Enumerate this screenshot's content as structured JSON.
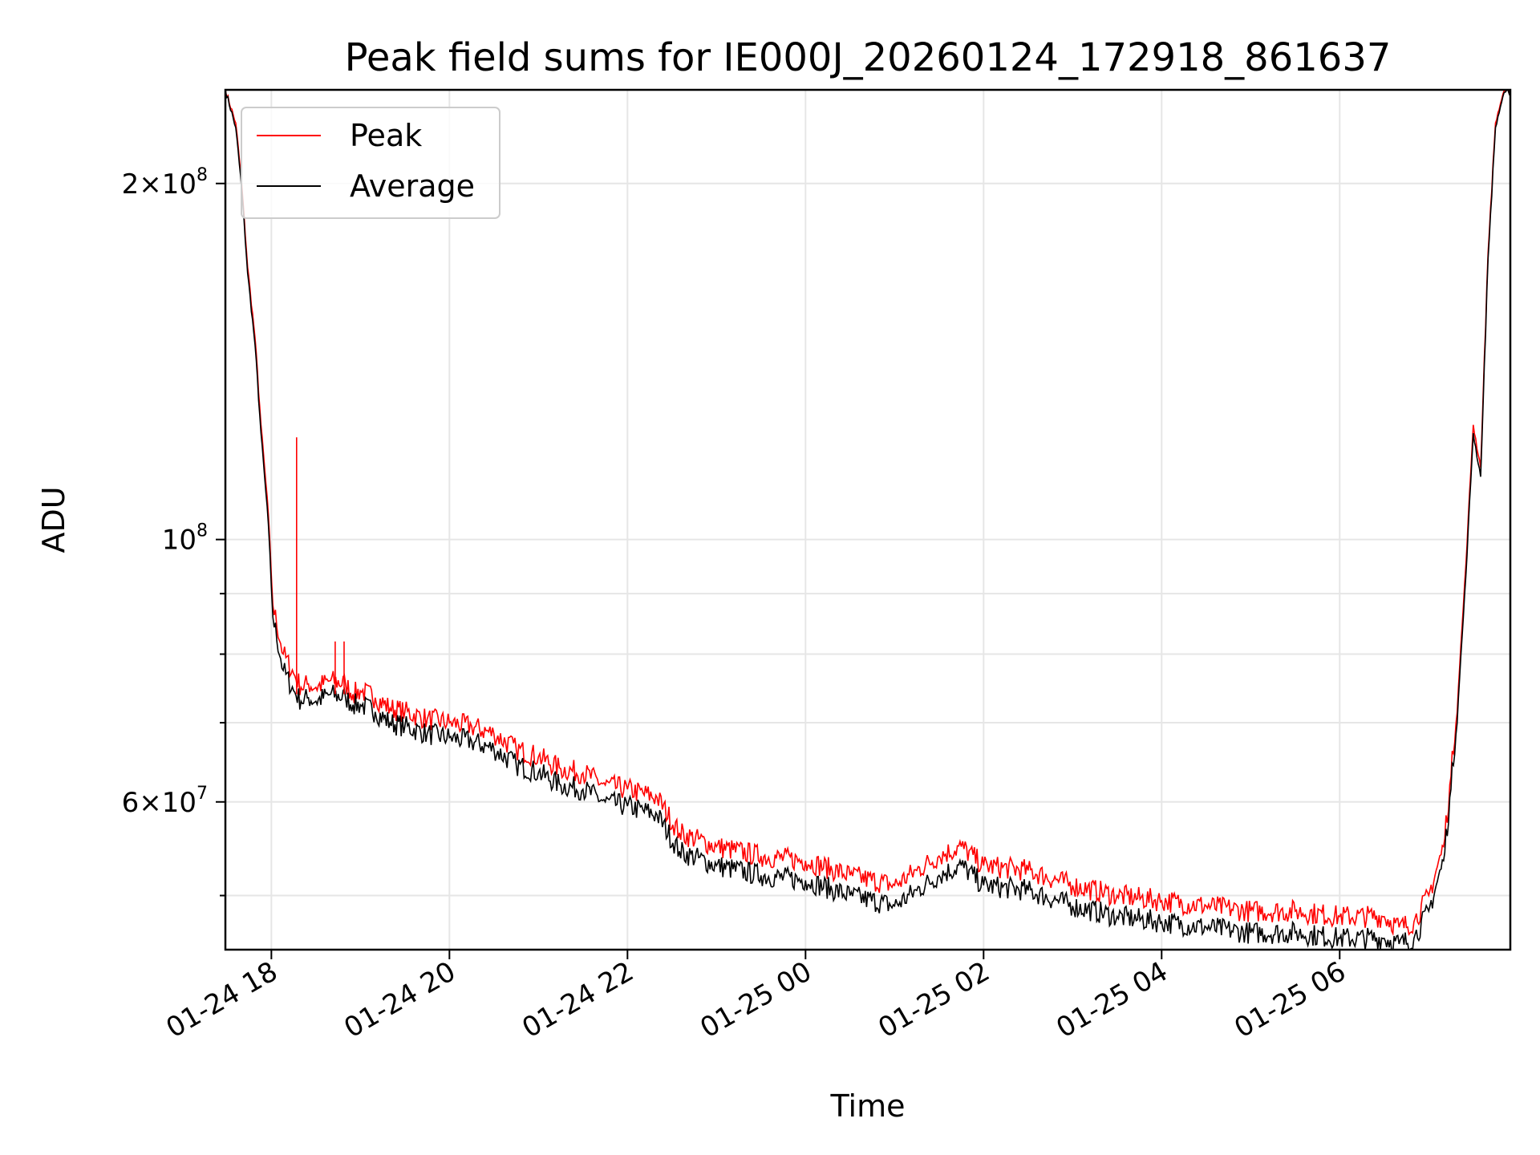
{
  "chart_data": {
    "type": "line",
    "title": "Peak field sums for IE000J_20260124_172918_861637",
    "xlabel": "Time",
    "ylabel": "ADU",
    "yscale": "log",
    "ylim": [
      45000000,
      240000000
    ],
    "xlim": [
      "2026-01-24 17:29",
      "2026-01-25 07:55"
    ],
    "grid": true,
    "legend_position": "upper-left",
    "x_tick_labels": [
      "01-24 18",
      "01-24 20",
      "01-24 22",
      "01-25 00",
      "01-25 02",
      "01-25 04",
      "01-25 06"
    ],
    "x_ticks": [
      "2026-01-24 18:00",
      "2026-01-24 20:00",
      "2026-01-24 22:00",
      "2026-01-25 00:00",
      "2026-01-25 02:00",
      "2026-01-25 04:00",
      "2026-01-25 06:00"
    ],
    "y_major_ticks": [
      {
        "value": 60000000,
        "mantissa": "6",
        "exponent": "7"
      },
      {
        "value": 100000000,
        "mantissa": "",
        "exponent": "8"
      },
      {
        "value": 200000000,
        "mantissa": "2",
        "exponent": "8"
      }
    ],
    "y_minor_ticks": [
      50000000,
      70000000,
      80000000,
      90000000
    ],
    "x": [
      "2026-01-24 17:29",
      "2026-01-24 17:36",
      "2026-01-24 17:40",
      "2026-01-24 17:44",
      "2026-01-24 17:49",
      "2026-01-24 17:53",
      "2026-01-24 17:58",
      "2026-01-24 18:01",
      "2026-01-24 18:08",
      "2026-01-24 18:15",
      "2026-01-24 18:20",
      "2026-01-24 18:25",
      "2026-01-24 18:30",
      "2026-01-24 18:40",
      "2026-01-24 18:50",
      "2026-01-24 18:55",
      "2026-01-24 19:00",
      "2026-01-24 19:10",
      "2026-01-24 19:20",
      "2026-01-24 19:30",
      "2026-01-24 19:45",
      "2026-01-24 20:00",
      "2026-01-24 20:15",
      "2026-01-24 20:30",
      "2026-01-24 20:45",
      "2026-01-24 21:00",
      "2026-01-24 21:15",
      "2026-01-24 21:30",
      "2026-01-24 21:45",
      "2026-01-24 22:00",
      "2026-01-24 22:20",
      "2026-01-24 22:35",
      "2026-01-24 23:00",
      "2026-01-24 23:30",
      "2026-01-25 00:00",
      "2026-01-25 00:30",
      "2026-01-25 01:00",
      "2026-01-25 01:15",
      "2026-01-25 01:30",
      "2026-01-25 01:45",
      "2026-01-25 02:00",
      "2026-01-25 02:30",
      "2026-01-25 03:00",
      "2026-01-25 03:30",
      "2026-01-25 04:00",
      "2026-01-25 04:30",
      "2026-01-25 05:00",
      "2026-01-25 05:30",
      "2026-01-25 06:00",
      "2026-01-25 06:30",
      "2026-01-25 06:40",
      "2026-01-25 06:50",
      "2026-01-25 07:00",
      "2026-01-25 07:10",
      "2026-01-25 07:15",
      "2026-01-25 07:20",
      "2026-01-25 07:25",
      "2026-01-25 07:30",
      "2026-01-25 07:35",
      "2026-01-25 07:40",
      "2026-01-25 07:45",
      "2026-01-25 07:50",
      "2026-01-25 07:55"
    ],
    "series": [
      {
        "name": "Peak",
        "color": "#ff0000",
        "values": [
          240000000,
          225000000,
          200000000,
          170000000,
          148000000,
          125000000,
          105000000,
          88000000,
          80000000,
          77000000,
          75000000,
          75500000,
          75000000,
          76000000,
          75500000,
          74000000,
          74500000,
          73500000,
          72000000,
          71500000,
          70500000,
          70000000,
          69500000,
          68500000,
          66500000,
          65500000,
          64000000,
          63500000,
          62000000,
          61500000,
          60500000,
          56500000,
          55000000,
          54000000,
          53500000,
          52000000,
          51000000,
          52500000,
          54000000,
          55000000,
          53000000,
          52500000,
          51000000,
          50000000,
          49500000,
          49000000,
          48500000,
          48500000,
          48000000,
          48000000,
          47000000,
          47500000,
          50000000,
          55000000,
          63000000,
          75000000,
          95000000,
          125000000,
          115000000,
          175000000,
          225000000,
          238000000,
          240000000
        ]
      },
      {
        "name": "Average",
        "color": "#000000",
        "values": [
          240000000,
          223000000,
          198000000,
          168000000,
          146000000,
          123000000,
          103000000,
          86000000,
          77500000,
          74500000,
          73000000,
          73500000,
          73000000,
          74000000,
          73500000,
          72500000,
          72500000,
          71500000,
          70000000,
          69500000,
          68500000,
          68000000,
          67500000,
          66500000,
          64500000,
          63500000,
          62000000,
          61500000,
          60000000,
          59500000,
          58500000,
          54500000,
          53000000,
          52000000,
          51500000,
          50000000,
          49000000,
          50500000,
          52000000,
          53000000,
          51000000,
          50500000,
          49000000,
          48000000,
          47500000,
          47000000,
          46500000,
          46500000,
          46000000,
          46000000,
          45500000,
          46000000,
          48500000,
          53500000,
          61500000,
          73500000,
          93000000,
          123000000,
          113000000,
          173000000,
          223000000,
          237000000,
          240000000
        ]
      }
    ],
    "annotations": [
      {
        "series": "Peak",
        "x": "2026-01-24 18:17",
        "y": 122000000,
        "type": "spike"
      },
      {
        "series": "Peak",
        "x": "2026-01-24 18:43",
        "y": 82000000,
        "type": "spike"
      },
      {
        "series": "Peak",
        "x": "2026-01-24 18:49",
        "y": 82000000,
        "type": "spike"
      }
    ]
  }
}
